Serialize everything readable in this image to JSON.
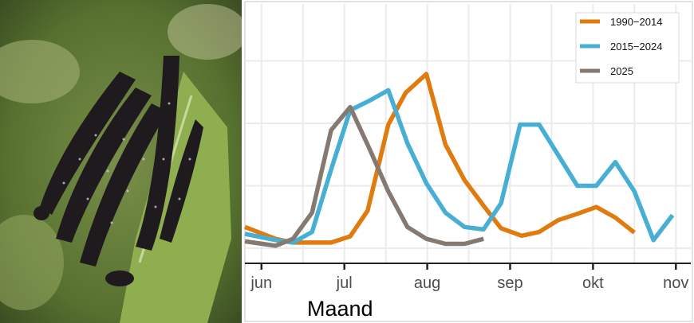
{
  "photo": {
    "subject": "caterpillars on nettle leaf"
  },
  "chart_data": {
    "type": "line",
    "title": "",
    "xlabel": "Maand",
    "ylabel": "",
    "x_ticks": [
      {
        "value": 6,
        "label": "jun"
      },
      {
        "value": 7,
        "label": "jul"
      },
      {
        "value": 8,
        "label": "aug"
      },
      {
        "value": 9,
        "label": "sep"
      },
      {
        "value": 10,
        "label": "okt"
      },
      {
        "value": 11,
        "label": "nov"
      }
    ],
    "xlim": [
      5.8,
      11.18
    ],
    "ylim": [
      -0.25,
      3.96
    ],
    "y_gridlines": [
      0,
      1,
      2,
      3
    ],
    "grid": true,
    "legend_position": "top-right",
    "series": [
      {
        "name": "1990−2014",
        "color": "#e07b10",
        "x": [
          5.8,
          6.17,
          6.38,
          6.84,
          7.07,
          7.28,
          7.53,
          7.74,
          7.99,
          8.22,
          8.45,
          8.68,
          8.89,
          9.14,
          9.35,
          9.58,
          9.81,
          10.04,
          10.27,
          10.5
        ],
        "y": [
          0.34,
          0.15,
          0.09,
          0.09,
          0.19,
          0.6,
          1.98,
          2.49,
          2.79,
          1.66,
          1.09,
          0.68,
          0.32,
          0.2,
          0.26,
          0.45,
          0.55,
          0.66,
          0.49,
          0.25
        ]
      },
      {
        "name": "2015−2024",
        "color": "#47aed4",
        "x": [
          5.8,
          6.17,
          6.38,
          6.61,
          6.84,
          7.07,
          7.3,
          7.53,
          7.76,
          7.99,
          8.22,
          8.45,
          8.68,
          8.89,
          9.12,
          9.35,
          9.58,
          9.81,
          10.04,
          10.27,
          10.5,
          10.73,
          10.96
        ],
        "y": [
          0.23,
          0.13,
          0.09,
          0.26,
          1.26,
          2.21,
          2.36,
          2.53,
          1.68,
          1.04,
          0.57,
          0.34,
          0.3,
          0.72,
          1.98,
          1.98,
          1.49,
          1.0,
          1.0,
          1.38,
          0.91,
          0.13,
          0.53
        ]
      },
      {
        "name": "2025",
        "color": "#857a72",
        "x": [
          5.8,
          6.17,
          6.38,
          6.61,
          6.84,
          7.07,
          7.3,
          7.53,
          7.76,
          7.99,
          8.22,
          8.45,
          8.68
        ],
        "y": [
          0.11,
          0.04,
          0.15,
          0.57,
          1.89,
          2.26,
          1.6,
          0.91,
          0.34,
          0.15,
          0.07,
          0.07,
          0.15
        ]
      }
    ]
  }
}
